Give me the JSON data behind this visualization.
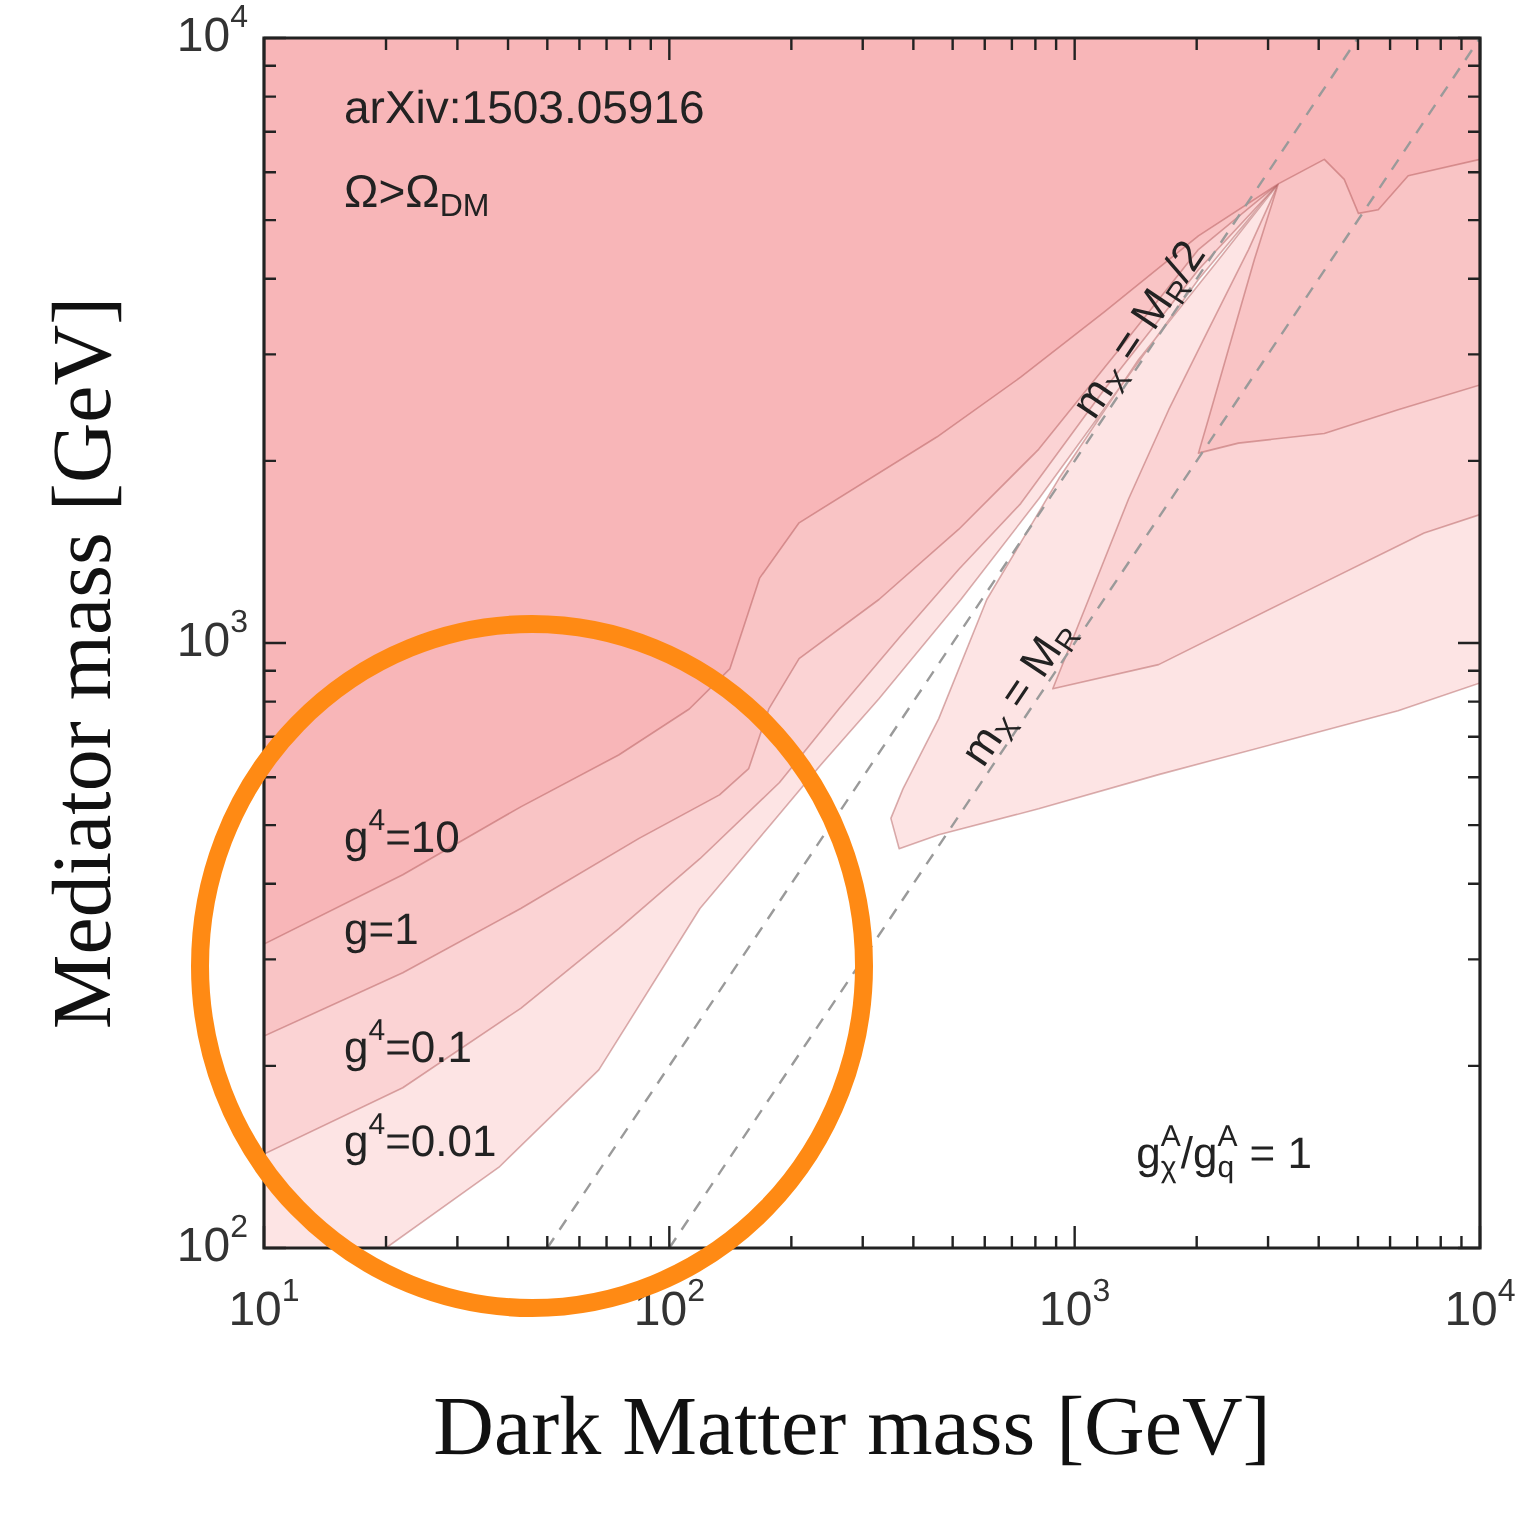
{
  "chart_data": {
    "type": "area",
    "xlabel": "Dark Matter mass [GeV]",
    "ylabel": "Mediator mass [GeV]",
    "log": "xy",
    "marker": "none",
    "xlim": [
      10,
      10000
    ],
    "ylim": [
      100,
      10000
    ],
    "xticks": [
      {
        "value": 10,
        "label": "10$^{1}$"
      },
      {
        "value": 20,
        "label": null
      },
      {
        "value": 30,
        "label": null
      },
      {
        "value": 40,
        "label": null
      },
      {
        "value": 50,
        "label": null
      },
      {
        "value": 60,
        "label": null
      },
      {
        "value": 70,
        "label": null
      },
      {
        "value": 80,
        "label": null
      },
      {
        "value": 90,
        "label": null
      },
      {
        "value": 100,
        "label": "10$^{2}$"
      },
      {
        "value": 200,
        "label": null
      },
      {
        "value": 300,
        "label": null
      },
      {
        "value": 400,
        "label": null
      },
      {
        "value": 500,
        "label": null
      },
      {
        "value": 600,
        "label": null
      },
      {
        "value": 700,
        "label": null
      },
      {
        "value": 800,
        "label": null
      },
      {
        "value": 900,
        "label": null
      },
      {
        "value": 1000,
        "label": "10$^{3}$"
      },
      {
        "value": 2000,
        "label": null
      },
      {
        "value": 3000,
        "label": null
      },
      {
        "value": 4000,
        "label": null
      },
      {
        "value": 5000,
        "label": null
      },
      {
        "value": 6000,
        "label": null
      },
      {
        "value": 7000,
        "label": null
      },
      {
        "value": 8000,
        "label": null
      },
      {
        "value": 9000,
        "label": null
      },
      {
        "value": 10000,
        "label": "10$^{4}$"
      }
    ],
    "yticks": [
      {
        "value": 100,
        "label": "10$^{2}$"
      },
      {
        "value": 200,
        "label": null
      },
      {
        "value": 300,
        "label": null
      },
      {
        "value": 400,
        "label": null
      },
      {
        "value": 500,
        "label": null
      },
      {
        "value": 600,
        "label": null
      },
      {
        "value": 700,
        "label": null
      },
      {
        "value": 800,
        "label": null
      },
      {
        "value": 900,
        "label": null
      },
      {
        "value": 1000,
        "label": "10$^{3}$"
      },
      {
        "value": 2000,
        "label": null
      },
      {
        "value": 3000,
        "label": null
      },
      {
        "value": 4000,
        "label": null
      },
      {
        "value": 5000,
        "label": null
      },
      {
        "value": 6000,
        "label": null
      },
      {
        "value": 7000,
        "label": null
      },
      {
        "value": 8000,
        "label": null
      },
      {
        "value": 9000,
        "label": null
      },
      {
        "value": 10000,
        "label": "10$^{4}$"
      }
    ],
    "series": [
      {
        "name": "g$^{4}$=0.01",
        "color": "#fde4e4",
        "x": [
          10,
          10000,
          10000,
          6280,
          3179,
          1611,
          815,
          462,
          369,
          352,
          377,
          462,
          607,
          914,
          1437,
          2264,
          3179,
          2020,
          1284,
          815,
          524,
          329,
          234,
          176,
          119,
          67,
          38,
          20,
          10
        ],
        "values": [
          10000,
          10000,
          859,
          773,
          684,
          606,
          532,
          482,
          457,
          513,
          574,
          750,
          1180,
          1870,
          2940,
          4300,
          5740,
          3990,
          2630,
          1730,
          1180,
          809,
          624,
          497,
          364,
          197,
          136,
          100,
          100
        ]
      },
      {
        "name": "g$^{4}$=0.1",
        "color": "#fbd3d4",
        "x": [
          10,
          22,
          43,
          75,
          119,
          187,
          262,
          369,
          518,
          736,
          1186,
          2020,
          3179,
          2685,
          2138,
          1706,
          1358,
          1082,
          883,
          1611,
          3563,
          7280,
          10000,
          10000,
          10
        ],
        "values": [
          143,
          184,
          249,
          337,
          440,
          588,
          778,
          1020,
          1324,
          1700,
          2630,
          4140,
          5740,
          4470,
          3296,
          2430,
          1730,
          1180,
          840,
          921,
          1200,
          1520,
          1630,
          10000,
          10000
        ]
      },
      {
        "name": "g=1",
        "color": "#f9c4c5",
        "x": [
          10,
          22,
          43,
          84,
          133,
          157,
          176,
          209,
          329,
          518,
          815,
          1284,
          2020,
          3179,
          2774,
          2393,
          2138,
          2020,
          2535,
          4130,
          6280,
          10000,
          10000,
          10
        ],
        "values": [
          224,
          285,
          364,
          475,
          561,
          620,
          778,
          942,
          1180,
          1542,
          2090,
          3050,
          4470,
          5740,
          4300,
          3050,
          2345,
          2060,
          2140,
          2220,
          2430,
          2670,
          10000,
          10000
        ]
      },
      {
        "name": "g$^{4}$=10",
        "color": "#f8b6b8",
        "x": [
          10,
          22,
          43,
          75,
          112,
          141,
          167,
          209,
          457,
          736,
          1186,
          2020,
          3179,
          4130,
          4624,
          5012,
          5610,
          6650,
          10000,
          10000,
          10
        ],
        "values": [
          318,
          414,
          536,
          653,
          778,
          906,
          1280,
          1580,
          2190,
          2750,
          3530,
          4710,
          5740,
          6300,
          5840,
          5130,
          5200,
          5920,
          6300,
          10000,
          10000
        ]
      },
      {
        "name": "m$_{X}$ = M$_{R}$/2",
        "type": "line",
        "line_style": "dashed",
        "color": "#9a9a9a",
        "x": [
          50,
          5000
        ],
        "values": [
          100,
          10000
        ]
      },
      {
        "name": "m$_{X}$ = M$_{R}$",
        "type": "line",
        "line_style": "dashed",
        "color": "#9a9a9a",
        "x": [
          100,
          10000
        ],
        "values": [
          100,
          10000
        ]
      }
    ],
    "annotations": [
      "arXiv:1503.05916",
      "Ω>Ω$_{DM}$",
      "g$_{χ}$$^{A}$/g$_{q}$$^{A}$ = 1"
    ]
  }
}
